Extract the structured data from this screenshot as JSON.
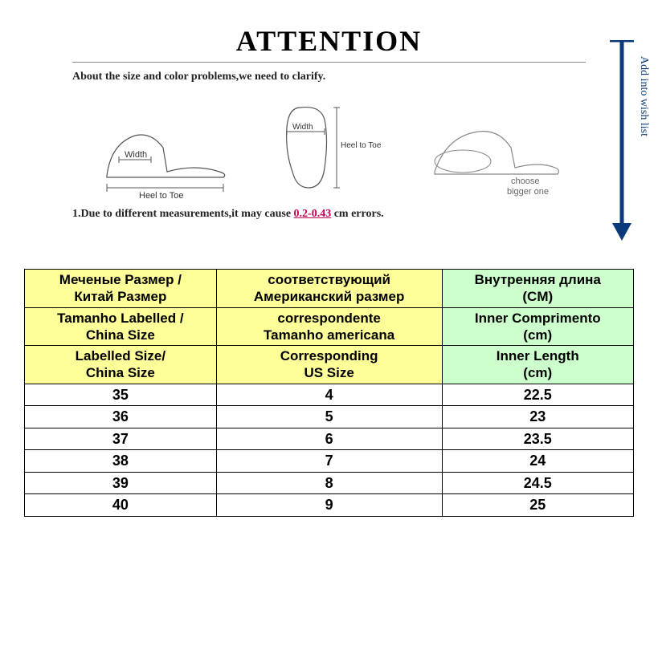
{
  "attention": {
    "title": "ATTENTION",
    "subtitle": "About the size and color problems,we need to clarify.",
    "diagram1": {
      "label_width": "Width",
      "label_heel": "Heel to Toe"
    },
    "diagram2": {
      "label_width": "Width",
      "label_heel": "Heel to Toe"
    },
    "diagram3": {
      "label_choose": "choose",
      "label_bigger": "bigger one"
    },
    "footnote_prefix": "1.Due to different measurements,it may cause ",
    "footnote_error": "0.2-0.43",
    "footnote_suffix": " cm errors.",
    "wishlist": "Add into wish list",
    "arrow_color": "#0a3a7a"
  },
  "table": {
    "header": {
      "ru": {
        "c1a": "Меченые Размер /",
        "c1b": "Китай Размер",
        "c2a": "соответствующий",
        "c2b": "Американский размер",
        "c3a": "Внутренняя длина",
        "c3b": "(CM)"
      },
      "pt": {
        "c1a": "Tamanho Labelled /",
        "c1b": "China Size",
        "c2a": "correspondente",
        "c2b": "Tamanho americana",
        "c3a": "Inner Comprimento",
        "c3b": "(cm)"
      },
      "en": {
        "c1a": "Labelled Size/",
        "c1b": "China Size",
        "c2a": "Corresponding",
        "c2b": "US Size",
        "c3a": "Inner Length",
        "c3b": "(cm)"
      }
    },
    "rows": [
      {
        "cn": "35",
        "us": "4",
        "len": "22.5"
      },
      {
        "cn": "36",
        "us": "5",
        "len": "23"
      },
      {
        "cn": "37",
        "us": "6",
        "len": "23.5"
      },
      {
        "cn": "38",
        "us": "7",
        "len": "24"
      },
      {
        "cn": "39",
        "us": "8",
        "len": "24.5"
      },
      {
        "cn": "40",
        "us": "9",
        "len": "25"
      }
    ],
    "colors": {
      "yellow": "#ffff99",
      "green": "#ccffcc",
      "border": "#000000"
    }
  }
}
